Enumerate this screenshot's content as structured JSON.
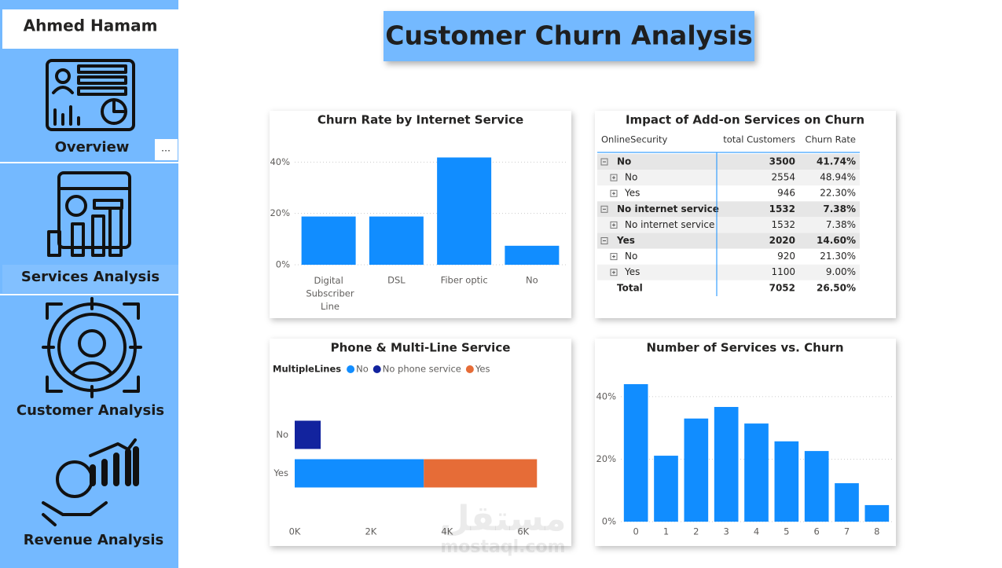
{
  "sidebar": {
    "user": "Ahmed Hamam",
    "items": [
      "Overview",
      "Services Analysis",
      "Customer Analysis",
      "Revenue Analysis"
    ]
  },
  "header": {
    "title": "Customer Churn Analysis"
  },
  "chart_data": [
    {
      "type": "bar",
      "title": "Churn Rate by Internet Service",
      "categories": [
        "Digital Subscriber Line",
        "DSL",
        "Fiber optic",
        "No"
      ],
      "values": [
        18.8,
        18.8,
        41.8,
        7.4
      ],
      "color": "#118dff",
      "ylim": [
        0,
        45
      ],
      "yticks": [
        {
          "value": 0,
          "label": "0%"
        },
        {
          "value": 20,
          "label": "20%"
        },
        {
          "value": 40,
          "label": "40%"
        }
      ],
      "grid": true
    },
    {
      "type": "barh",
      "stacked": true,
      "title": "Phone & Multi-Line Service",
      "legend_title": "MultipleLines",
      "categories": [
        "No",
        "Yes"
      ],
      "series": [
        {
          "name": "No",
          "color": "#118dff",
          "values": [
            null,
            3390
          ]
        },
        {
          "name": "No phone service",
          "color": "#12239e",
          "values": [
            682,
            null
          ]
        },
        {
          "name": "Yes",
          "color": "#e66c37",
          "values": [
            null,
            2971
          ]
        }
      ],
      "xlim": [
        0,
        6500
      ],
      "xticks": [
        {
          "value": 0,
          "label": "0K"
        },
        {
          "value": 2000,
          "label": "2K"
        },
        {
          "value": 4000,
          "label": "4K"
        },
        {
          "value": 6000,
          "label": "6K"
        }
      ],
      "grid": false
    },
    {
      "type": "bar",
      "title": "Number of Services vs. Churn",
      "categories": [
        "0",
        "1",
        "2",
        "3",
        "4",
        "5",
        "6",
        "7",
        "8"
      ],
      "values": [
        44.0,
        21.1,
        33.0,
        36.7,
        31.4,
        25.7,
        22.6,
        12.3,
        5.3
      ],
      "color": "#118dff",
      "ylim": [
        0,
        45
      ],
      "yticks": [
        {
          "value": 0,
          "label": "0%"
        },
        {
          "value": 20,
          "label": "20%"
        },
        {
          "value": 40,
          "label": "40%"
        }
      ],
      "grid": true
    }
  ],
  "table": {
    "title": "Impact of Add-on Services on Churn",
    "columns": [
      "OnlineSecurity",
      "total Customers",
      "Churn Rate"
    ],
    "groups": [
      {
        "row": [
          "No",
          3500,
          "41.74%"
        ],
        "children": [
          [
            "No",
            2554,
            "48.94%"
          ],
          [
            "Yes",
            946,
            "22.30%"
          ]
        ]
      },
      {
        "row": [
          "No internet service",
          1532,
          "7.38%"
        ],
        "children": [
          [
            "No internet service",
            1532,
            "7.38%"
          ]
        ]
      },
      {
        "row": [
          "Yes",
          2020,
          "14.60%"
        ],
        "children": [
          [
            "No",
            920,
            "21.30%"
          ],
          [
            "Yes",
            1100,
            "9.00%"
          ]
        ]
      }
    ],
    "total": [
      "Total",
      7052,
      "26.50%"
    ]
  },
  "watermark": {
    "arabic": "مستقل",
    "latin": "mostaql.com"
  }
}
